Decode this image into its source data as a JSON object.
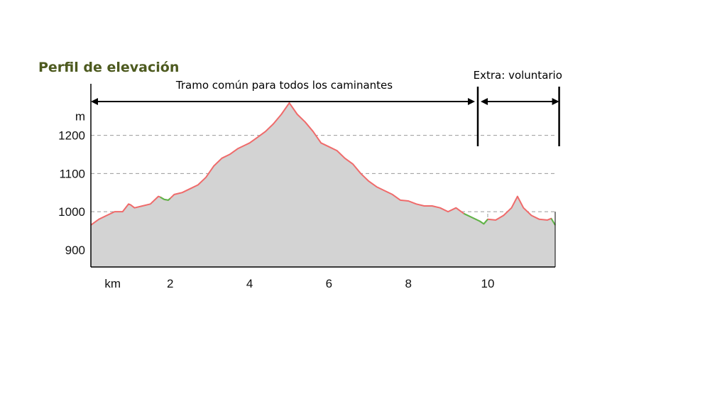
{
  "title": "Perfil de elevación",
  "chart_data": {
    "type": "area",
    "title": "Perfil de elevación",
    "xlabel": "km",
    "ylabel": "m",
    "xlim": [
      0,
      11.7
    ],
    "ylim": [
      855,
      1335
    ],
    "x_ticks": [
      2,
      4,
      6,
      8,
      10
    ],
    "y_ticks": [
      900,
      1000,
      1100,
      1200
    ],
    "grid": true,
    "colors": {
      "fill": "#d3d3d3",
      "climb": "#ef6b6b",
      "flat": "#5bb84a",
      "grid": "#999999"
    },
    "series": [
      {
        "x": [
          0,
          0.2,
          0.4,
          0.6,
          0.8,
          0.95,
          1.0,
          1.1,
          1.3,
          1.5,
          1.7,
          1.75,
          1.85,
          1.95,
          2.0,
          2.1,
          2.3,
          2.5,
          2.7,
          2.9,
          3.1,
          3.3,
          3.5,
          3.7,
          3.9,
          4.0,
          4.2,
          4.4,
          4.6,
          4.8,
          5.0,
          5.2,
          5.4,
          5.6,
          5.8,
          6.0,
          6.2,
          6.4,
          6.6,
          6.8,
          7.0,
          7.2,
          7.4,
          7.6,
          7.8,
          8.0,
          8.2,
          8.4,
          8.6,
          8.8,
          9.0,
          9.2,
          9.4,
          9.6,
          9.8,
          9.9,
          10.0,
          10.2,
          10.4,
          10.6,
          10.75,
          10.9,
          11.1,
          11.3,
          11.5,
          11.6,
          11.7
        ],
        "y": [
          965,
          980,
          990,
          1000,
          1000,
          1020,
          1018,
          1010,
          1015,
          1020,
          1040,
          1038,
          1032,
          1030,
          1035,
          1045,
          1050,
          1060,
          1070,
          1090,
          1120,
          1140,
          1150,
          1165,
          1175,
          1180,
          1195,
          1210,
          1230,
          1255,
          1285,
          1255,
          1235,
          1210,
          1180,
          1170,
          1160,
          1140,
          1125,
          1100,
          1080,
          1065,
          1055,
          1045,
          1030,
          1028,
          1020,
          1015,
          1015,
          1010,
          1000,
          1010,
          995,
          985,
          975,
          968,
          980,
          978,
          990,
          1010,
          1040,
          1010,
          990,
          980,
          978,
          982,
          965
        ]
      }
    ],
    "flat_segments": [
      [
        1.75,
        2.0
      ],
      [
        9.4,
        10.0
      ],
      [
        11.6,
        11.7
      ]
    ],
    "annotations": [
      {
        "text": "Tramo común para todos los caminantes",
        "from": 0,
        "to": 9.75
      },
      {
        "text": "Extra: voluntario",
        "from": 9.75,
        "to": 11.8
      }
    ]
  }
}
